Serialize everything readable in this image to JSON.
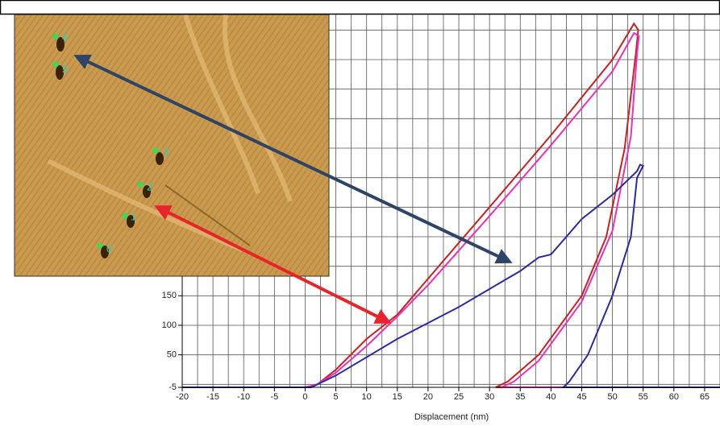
{
  "chart_data": {
    "type": "line",
    "x_label": "Displacement (nm)",
    "xlim": [
      -20,
      67.5
    ],
    "ylim": [
      -5,
      640
    ],
    "xticks": [
      -20,
      -15,
      -10,
      -5,
      0,
      5,
      10,
      15,
      20,
      25,
      30,
      35,
      40,
      45,
      50,
      55,
      60,
      65
    ],
    "yticks": [
      -5,
      50,
      100,
      150
    ],
    "grid": true,
    "xgrid_step": 2.5,
    "ygrid_step": 50,
    "series": [
      {
        "color": "#cc1f1f",
        "x": [
          -20,
          0,
          2,
          5,
          10,
          15,
          20,
          30,
          40,
          50,
          53.5,
          54.2,
          53.8,
          52,
          49,
          45,
          38,
          33,
          31,
          40,
          67.5
        ],
        "y": [
          -5,
          -5,
          0,
          25,
          77,
          118,
          179,
          300,
          422,
          550,
          611,
          600,
          560,
          400,
          250,
          150,
          50,
          5,
          -5,
          -5,
          -5
        ]
      },
      {
        "color": "#ee2fb8",
        "x": [
          -20,
          0,
          2,
          5,
          10,
          15,
          20,
          30,
          40,
          50,
          53.5,
          54.3,
          54,
          53,
          50,
          45,
          38,
          34,
          32,
          40,
          67.5
        ],
        "y": [
          -5,
          -5,
          0,
          20,
          65,
          115,
          168,
          285,
          405,
          530,
          595,
          590,
          560,
          420,
          260,
          140,
          40,
          5,
          -5,
          -5,
          -5
        ]
      },
      {
        "color": "#2a2aa8",
        "x": [
          -20,
          0,
          1,
          5,
          15,
          25,
          35,
          38,
          40,
          45,
          50,
          54,
          54.5,
          55,
          54,
          53,
          50,
          46,
          43,
          42,
          50,
          67.5
        ],
        "y": [
          -5,
          -5,
          -5,
          15,
          77,
          131,
          192,
          215,
          220,
          280,
          321,
          361,
          372,
          370,
          350,
          250,
          150,
          50,
          5,
          -5,
          -5,
          -5
        ]
      }
    ]
  },
  "inset": {
    "labels": [
      "4",
      "5",
      "3",
      "2",
      "1",
      "0"
    ]
  }
}
